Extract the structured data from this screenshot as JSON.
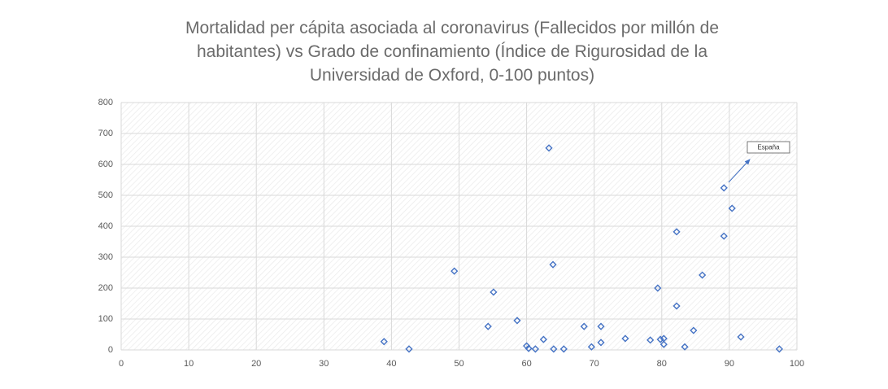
{
  "chart_data": {
    "type": "scatter",
    "title": "Mortalidad per cápita asociada al coronavirus (Fallecidos por millón de habitantes) vs Grado de confinamiento (Índice de Rigurosidad de la Universidad de Oxford, 0-100 puntos)",
    "x": [
      38.9,
      42.6,
      49.3,
      54.3,
      55.1,
      58.6,
      60.0,
      60.3,
      61.3,
      62.5,
      63.9,
      64.0,
      63.3,
      65.5,
      68.5,
      69.6,
      71.0,
      71.0,
      74.6,
      78.3,
      79.4,
      79.8,
      80.3,
      80.3,
      82.2,
      82.2,
      83.4,
      84.7,
      86.0,
      89.2,
      89.2,
      90.4,
      91.7,
      97.4
    ],
    "series": [
      {
        "color": "#4472c4",
        "values": [
          27,
          3,
          255,
          76,
          187,
          95,
          13,
          5,
          3,
          34,
          276,
          3,
          653,
          3,
          76,
          10,
          76,
          24,
          37,
          32,
          200,
          34,
          37,
          18,
          382,
          142,
          10,
          63,
          242,
          524,
          368,
          458,
          42,
          3
        ]
      }
    ],
    "annotations": [
      {
        "text": "España"
      }
    ],
    "xlim": [
      0,
      100
    ],
    "xticks": [
      0,
      10,
      20,
      30,
      40,
      50,
      60,
      70,
      80,
      90,
      100
    ],
    "ylim": [
      0,
      800
    ],
    "yticks": [
      0,
      100,
      200,
      300,
      400,
      500,
      600,
      700,
      800
    ],
    "grid": true
  }
}
